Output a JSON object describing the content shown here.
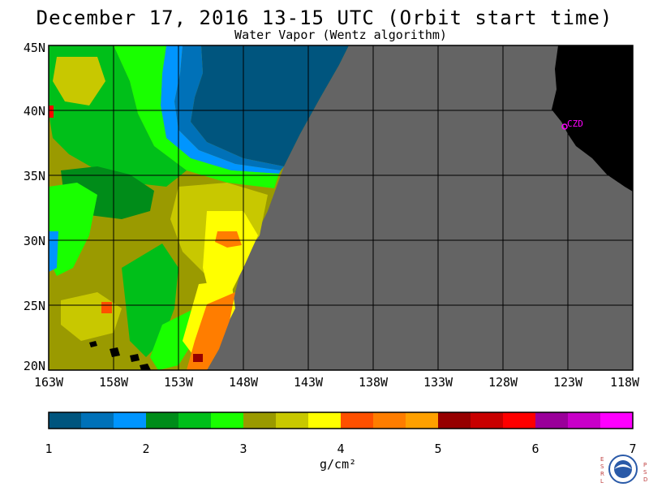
{
  "header": {
    "title": "December 17, 2016  13-15 UTC  (Orbit start time)",
    "subtitle": "Water Vapor (Wentz algorithm)"
  },
  "map": {
    "lat_labels": [
      "45N",
      "40N",
      "35N",
      "30N",
      "25N",
      "20N"
    ],
    "lon_labels": [
      "163W",
      "158W",
      "153W",
      "148W",
      "143W",
      "138W",
      "133W",
      "128W",
      "123W",
      "118W"
    ],
    "station_label": "CZD",
    "colors": {
      "no_data": "#646464",
      "land": "#000000",
      "grid": "#000000",
      "station": "#ff00ff"
    }
  },
  "colorbar": {
    "ticks": [
      "1",
      "2",
      "3",
      "4",
      "5",
      "6",
      "7"
    ],
    "unit": "g/cm²",
    "colors": [
      "#00557e",
      "#0071b8",
      "#0095ff",
      "#008c19",
      "#00bf19",
      "#19ff00",
      "#9a9a00",
      "#c8c800",
      "#ffff00",
      "#ff5000",
      "#ff7d00",
      "#ffa000",
      "#960000",
      "#c80000",
      "#ff0000",
      "#9a009a",
      "#c800c8",
      "#ff00ff"
    ]
  },
  "logos": {
    "left_text": "ESRL",
    "right_text": "PSD",
    "badge_text": "NOAA"
  }
}
